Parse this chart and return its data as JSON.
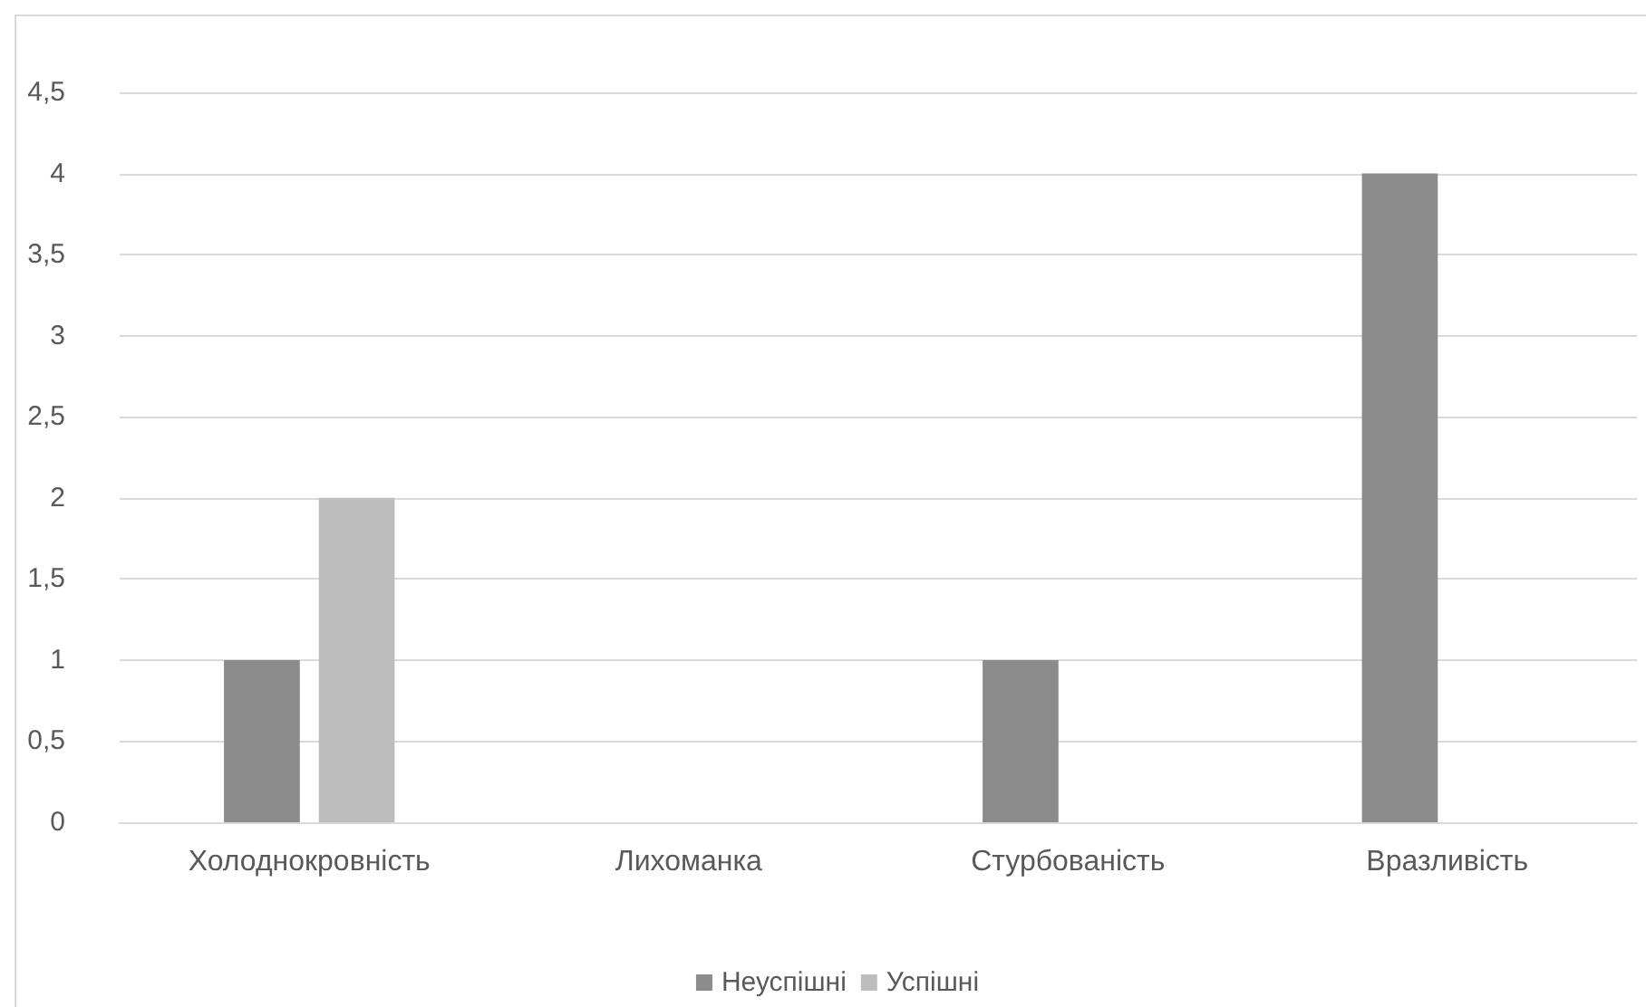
{
  "chart_data": {
    "type": "bar",
    "categories": [
      "Холоднокровність",
      "Лихоманка",
      "Стурбованість",
      "Вразливість"
    ],
    "series": [
      {
        "name": "Неуспішні",
        "color": "#8c8c8c",
        "values": [
          1,
          0,
          1,
          4
        ]
      },
      {
        "name": "Успішні",
        "color": "#bdbdbd",
        "values": [
          2,
          0,
          0,
          0
        ]
      }
    ],
    "ylim": [
      0,
      4.5
    ],
    "yticks": [
      0,
      {
        "value": 0.5,
        "label": "0,5"
      },
      1,
      {
        "value": 1.5,
        "label": "1,5"
      },
      2,
      {
        "value": 2.5,
        "label": "2,5"
      },
      3,
      {
        "value": 3.5,
        "label": "3,5"
      },
      4,
      {
        "value": 4.5,
        "label": "4,5"
      }
    ],
    "grid": "y",
    "legend": "bottom"
  }
}
